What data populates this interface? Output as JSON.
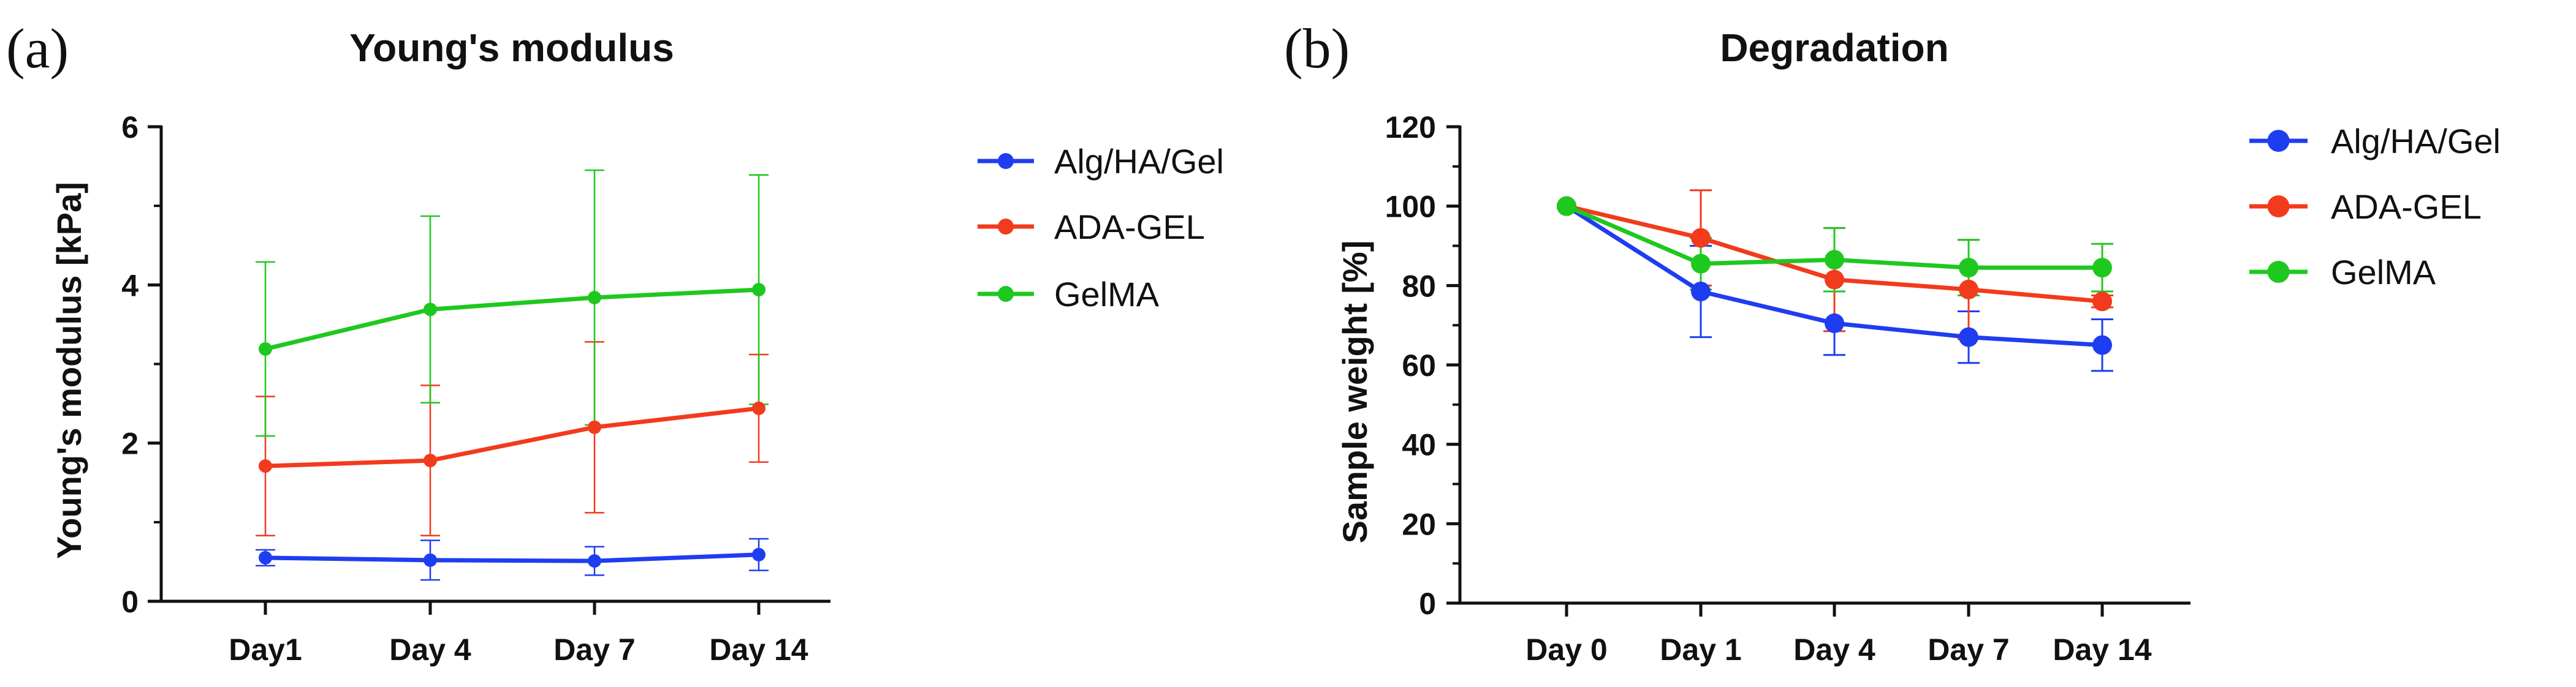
{
  "figure": {
    "panels": [
      "(a)",
      "(b)"
    ]
  },
  "chart_data": [
    {
      "type": "line",
      "panel_label": "(a)",
      "title": "Young's modulus",
      "xlabel": "",
      "ylabel": "Young's modulus [kPa]",
      "categories": [
        "Day1",
        "Day 4",
        "Day 7",
        "Day 14"
      ],
      "ylim": [
        0,
        6
      ],
      "yticks": [
        0,
        2,
        4,
        6
      ],
      "grid": false,
      "legend_position": "right",
      "series": [
        {
          "name": "Alg/HA/Gel",
          "color": "#1f3df0",
          "values": [
            0.55,
            0.52,
            0.51,
            0.59
          ],
          "errors": [
            0.1,
            0.25,
            0.18,
            0.2
          ]
        },
        {
          "name": "ADA-GEL",
          "color": "#f23a1d",
          "values": [
            1.71,
            1.78,
            2.2,
            2.44
          ],
          "errors": [
            0.88,
            0.95,
            1.08,
            0.68
          ]
        },
        {
          "name": "GelMA",
          "color": "#1fc81f",
          "values": [
            3.19,
            3.69,
            3.84,
            3.94
          ],
          "errors": [
            1.1,
            1.18,
            1.61,
            1.45
          ]
        }
      ]
    },
    {
      "type": "line",
      "panel_label": "(b)",
      "title": "Degradation",
      "xlabel": "",
      "ylabel": "Sample weight [%]",
      "categories": [
        "Day 0",
        "Day 1",
        "Day 4",
        "Day 7",
        "Day 14"
      ],
      "ylim": [
        0,
        120
      ],
      "yticks": [
        0,
        20,
        40,
        60,
        80,
        100,
        120
      ],
      "grid": false,
      "legend_position": "right",
      "series": [
        {
          "name": "Alg/HA/Gel",
          "color": "#1f3df0",
          "values": [
            100,
            78.5,
            70.5,
            67.0,
            65.0
          ],
          "errors": [
            0,
            11.5,
            8,
            6.5,
            6.5
          ]
        },
        {
          "name": "ADA-GEL",
          "color": "#f23a1d",
          "values": [
            100,
            92,
            81.5,
            79,
            76
          ],
          "errors": [
            0,
            12,
            13,
            12.5,
            1.5
          ]
        },
        {
          "name": "GelMA",
          "color": "#1fc81f",
          "values": [
            100,
            85.5,
            86.5,
            84.5,
            84.5
          ],
          "errors": [
            0,
            6.5,
            8,
            7,
            6
          ]
        }
      ]
    }
  ]
}
